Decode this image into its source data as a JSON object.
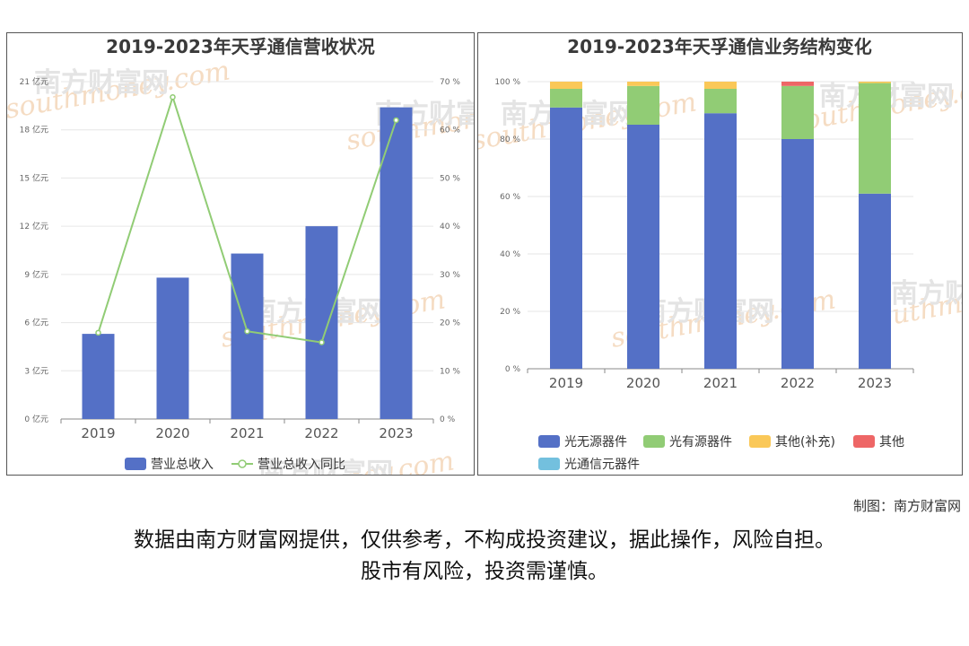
{
  "chart_data": [
    {
      "type": "bar",
      "title": "2019-2023年天孚通信营收状况",
      "categories": [
        "2019",
        "2020",
        "2021",
        "2022",
        "2023"
      ],
      "series": [
        {
          "name": "营业总收入",
          "type": "bar",
          "axis": "left",
          "values": [
            5.3,
            8.8,
            10.3,
            12.0,
            19.4
          ],
          "color": "#5470c6"
        },
        {
          "name": "营业总收入同比",
          "type": "line",
          "axis": "right",
          "values": [
            17.9,
            66.8,
            18.2,
            15.9,
            62.0
          ],
          "color": "#91cc75"
        }
      ],
      "y_left": {
        "ylim": [
          0,
          21
        ],
        "ticks": [
          "0 亿元",
          "3 亿元",
          "6 亿元",
          "9 亿元",
          "12 亿元",
          "15 亿元",
          "18 亿元",
          "21 亿元"
        ]
      },
      "y_right": {
        "ylim": [
          0,
          70
        ],
        "ticks": [
          "0 %",
          "10 %",
          "20 %",
          "30 %",
          "40 %",
          "50 %",
          "60 %",
          "70 %"
        ]
      },
      "grid": true,
      "legend_position": "bottom"
    },
    {
      "type": "bar",
      "stacked": true,
      "title": "2019-2023年天孚通信业务结构变化",
      "categories": [
        "2019",
        "2020",
        "2021",
        "2022",
        "2023"
      ],
      "series": [
        {
          "name": "光无源器件",
          "values": [
            91,
            85,
            89,
            80,
            61
          ],
          "color": "#5470c6"
        },
        {
          "name": "光有源器件",
          "values": [
            6.5,
            13.5,
            8.5,
            18.5,
            38.5
          ],
          "color": "#91cc75"
        },
        {
          "name": "其他(补充)",
          "values": [
            2.5,
            1.5,
            2.5,
            0,
            0.5
          ],
          "color": "#fac858"
        },
        {
          "name": "其他",
          "values": [
            0,
            0,
            0,
            1.5,
            0
          ],
          "color": "#ee6666"
        },
        {
          "name": "光通信元器件",
          "values": [
            0,
            0,
            0,
            0,
            0
          ],
          "color": "#73c0de"
        }
      ],
      "y": {
        "ylim": [
          0,
          100
        ],
        "ticks": [
          "0 %",
          "20 %",
          "40 %",
          "60 %",
          "80 %",
          "100 %"
        ]
      },
      "grid": true,
      "legend_position": "bottom"
    }
  ],
  "watermark": {
    "name": "南方财富网",
    "url": "southmoney.com"
  },
  "credit": "制图：南方财富网",
  "disclaimer": {
    "line1": "数据由南方财富网提供，仅供参考，不构成投资建议，据此操作，风险自担。",
    "line2": "股市有风险，投资需谨慎。"
  }
}
